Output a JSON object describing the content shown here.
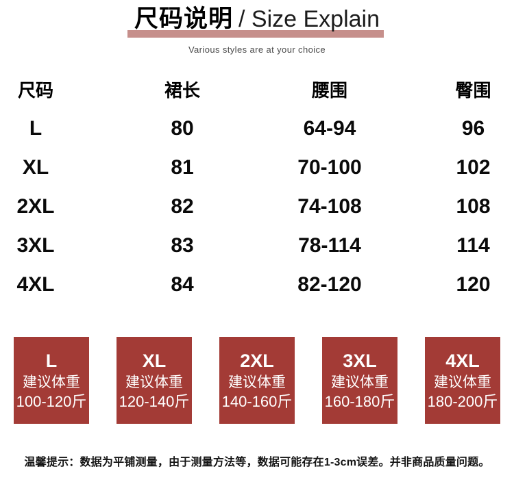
{
  "theme": {
    "card_bg": "#a33b36",
    "underline_bar": "#c68f8b"
  },
  "header": {
    "title_cn": "尺码说明",
    "title_en": "/ Size Explain",
    "subtitle": "Various styles are at your choice"
  },
  "size_table": {
    "columns": [
      "尺码",
      "裙长",
      "腰围",
      "臀围"
    ],
    "rows": [
      [
        "L",
        "80",
        "64-94",
        "96"
      ],
      [
        "XL",
        "81",
        "70-100",
        "102"
      ],
      [
        "2XL",
        "82",
        "74-108",
        "108"
      ],
      [
        "3XL",
        "83",
        "78-114",
        "114"
      ],
      [
        "4XL",
        "84",
        "82-120",
        "120"
      ]
    ]
  },
  "weight_cards": {
    "cards": [
      {
        "size": "L",
        "label": "建议体重",
        "range": "100-120斤"
      },
      {
        "size": "XL",
        "label": "建议体重",
        "range": "120-140斤"
      },
      {
        "size": "2XL",
        "label": "建议体重",
        "range": "140-160斤"
      },
      {
        "size": "3XL",
        "label": "建议体重",
        "range": "160-180斤"
      },
      {
        "size": "4XL",
        "label": "建议体重",
        "range": "180-200斤"
      }
    ]
  },
  "footer": {
    "note": "温馨提示：数据为平铺测量，由于测量方法等，数据可能存在1-3cm误差。并非商品质量问题。"
  }
}
